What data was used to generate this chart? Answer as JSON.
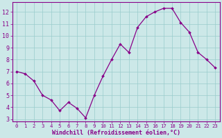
{
  "x": [
    0,
    1,
    2,
    3,
    4,
    5,
    6,
    7,
    8,
    9,
    10,
    11,
    12,
    13,
    14,
    15,
    16,
    17,
    18,
    19,
    20,
    21,
    22,
    23
  ],
  "y": [
    7.0,
    6.8,
    6.2,
    5.0,
    4.6,
    3.7,
    4.4,
    3.9,
    3.1,
    5.0,
    6.6,
    8.0,
    9.3,
    8.6,
    10.7,
    11.6,
    12.0,
    12.3,
    12.3,
    11.1,
    10.3,
    8.6,
    8.0,
    7.3
  ],
  "line_color": "#880088",
  "marker_color": "#880088",
  "bg_color": "#cce8e8",
  "grid_color": "#99cccc",
  "xlabel": "Windchill (Refroidissement éolien,°C)",
  "xlabel_color": "#880088",
  "tick_color": "#880088",
  "ylim": [
    2.8,
    12.8
  ],
  "xlim": [
    -0.5,
    23.5
  ],
  "yticks": [
    3,
    4,
    5,
    6,
    7,
    8,
    9,
    10,
    11,
    12
  ],
  "xticks": [
    0,
    1,
    2,
    3,
    4,
    5,
    6,
    7,
    8,
    9,
    10,
    11,
    12,
    13,
    14,
    15,
    16,
    17,
    18,
    19,
    20,
    21,
    22,
    23
  ],
  "xtick_labels": [
    "0",
    "1",
    "2",
    "3",
    "4",
    "5",
    "6",
    "7",
    "8",
    "9",
    "10",
    "11",
    "12",
    "13",
    "14",
    "15",
    "16",
    "17",
    "18",
    "19",
    "20",
    "21",
    "22",
    "23"
  ],
  "ytick_labels": [
    "3",
    "4",
    "5",
    "6",
    "7",
    "8",
    "9",
    "10",
    "11",
    "12"
  ],
  "spine_color": "#880088",
  "fig_bg": "#cce8e8",
  "xlabel_fontsize": 6.0,
  "tick_fontsize_x": 5.2,
  "tick_fontsize_y": 6.0
}
